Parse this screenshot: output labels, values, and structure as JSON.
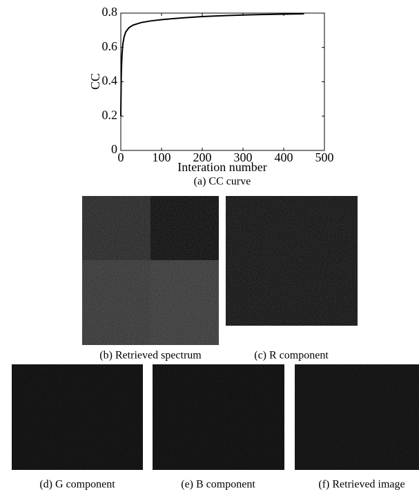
{
  "chart_data": {
    "type": "line",
    "x": [
      0,
      1,
      2,
      3,
      5,
      8,
      12,
      20,
      30,
      50,
      75,
      100,
      150,
      200,
      250,
      300,
      350,
      400,
      450
    ],
    "values": [
      0.2,
      0.42,
      0.5,
      0.56,
      0.62,
      0.66,
      0.69,
      0.715,
      0.73,
      0.745,
      0.755,
      0.762,
      0.772,
      0.78,
      0.785,
      0.789,
      0.792,
      0.794,
      0.796
    ],
    "color": "#000000",
    "xlim": [
      0,
      500
    ],
    "ylim": [
      0,
      0.8
    ],
    "xticks": [
      0,
      100,
      200,
      300,
      400,
      500
    ],
    "yticks": [
      0,
      0.2,
      0.4,
      0.6,
      0.8
    ],
    "grid": false,
    "xlabel": "Interation number",
    "ylabel": "CC",
    "caption": "(a) CC curve"
  },
  "figure": {
    "panels": [
      "(b) Retrieved spectrum",
      "(c) R component",
      "(d) G component",
      "(e) B component",
      "(f) Retrieved image"
    ]
  }
}
